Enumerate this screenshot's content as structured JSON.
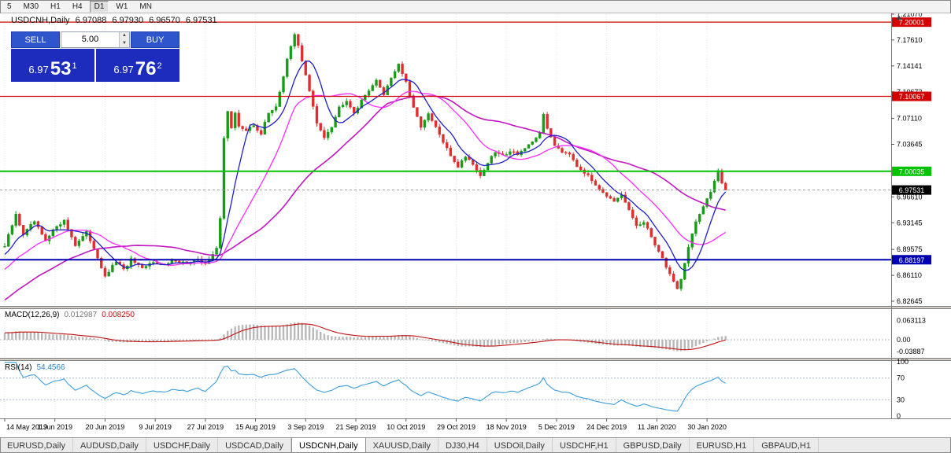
{
  "toolbar": {
    "timeframes": [
      "5",
      "M30",
      "H1",
      "H4",
      "D1",
      "W1",
      "MN"
    ],
    "active": "D1"
  },
  "chart_header": {
    "symbol_period": "USDCNH,Daily",
    "open": "6.97088",
    "high": "6.97930",
    "low": "6.96570",
    "close": "6.97531"
  },
  "one_click": {
    "sell_label": "SELL",
    "buy_label": "BUY",
    "volume": "5.00",
    "spin_up": "▲",
    "spin_down": "▼",
    "sell_small": "6.97",
    "sell_big": "53",
    "sell_sup": "1",
    "buy_small": "6.97",
    "buy_big": "76",
    "buy_sup": "2"
  },
  "colors": {
    "bull": "#189c18",
    "bear": "#dd2f2f",
    "ma_fast": "#1f1fc8",
    "ma_mid": "#ff2bff",
    "ma_slow": "#c316c3",
    "grid": "#e3e3e3",
    "axis_line": "#808080",
    "separator": "#d4d0c8",
    "macd_hist": "#b8b8b8",
    "macd_signal": "#c11111",
    "rsi_line": "#3a9fdc",
    "rsi_levels": "#a9b4c6",
    "bid_line": "#9a9a9a",
    "current_tag_bg": "#000000"
  },
  "chart_data": {
    "type": "candlestick",
    "symbol": "USDCNH",
    "period": "Daily",
    "visible_bars": 195,
    "current_price": 6.97531,
    "price_axis": {
      "min": 6.82645,
      "max": 7.2107,
      "ticks": [
        "7.21070",
        "7.17610",
        "7.14141",
        "7.10672",
        "7.07110",
        "7.03645",
        "6.96610",
        "6.93145",
        "6.89575",
        "6.86110",
        "6.82645"
      ]
    },
    "time_axis": {
      "labels": [
        "14 May 2019",
        "1 Jun 2019",
        "20 Jun 2019",
        "9 Jul 2019",
        "27 Jul 2019",
        "15 Aug 2019",
        "3 Sep 2019",
        "21 Sep 2019",
        "10 Oct 2019",
        "29 Oct 2019",
        "18 Nov 2019",
        "5 Dec 2019",
        "24 Dec 2019",
        "11 Jan 2020",
        "30 Jan 2020"
      ],
      "bars_per_label": 13.5
    },
    "levels": [
      {
        "value": 7.20001,
        "label": "7.20001",
        "color": "#d40000",
        "width": 1.2
      },
      {
        "value": 7.10067,
        "label": "7.10067",
        "color": "#d40000",
        "width": 1.2
      },
      {
        "value": 7.00035,
        "label": "7.00035",
        "color": "#00c300",
        "width": 2
      },
      {
        "value": 6.88197,
        "label": "6.88197",
        "color": "#0000b0",
        "width": 2
      }
    ],
    "current_tag": {
      "label": "6.97531"
    },
    "close_anchors": [
      [
        0,
        6.9
      ],
      [
        2,
        6.928
      ],
      [
        3,
        6.942
      ],
      [
        5,
        6.916
      ],
      [
        8,
        6.933
      ],
      [
        11,
        6.906
      ],
      [
        14,
        6.928
      ],
      [
        16,
        6.934
      ],
      [
        19,
        6.902
      ],
      [
        22,
        6.918
      ],
      [
        24,
        6.898
      ],
      [
        26,
        6.872
      ],
      [
        27,
        6.858
      ],
      [
        28,
        6.866
      ],
      [
        30,
        6.88
      ],
      [
        32,
        6.868
      ],
      [
        34,
        6.882
      ],
      [
        37,
        6.869
      ],
      [
        40,
        6.88
      ],
      [
        43,
        6.874
      ],
      [
        46,
        6.882
      ],
      [
        49,
        6.877
      ],
      [
        52,
        6.881
      ],
      [
        54,
        6.878
      ],
      [
        56,
        6.888
      ],
      [
        57,
        6.897
      ],
      [
        58,
        6.937
      ],
      [
        59,
        7.046
      ],
      [
        60,
        7.082
      ],
      [
        61,
        7.058
      ],
      [
        62,
        7.077
      ],
      [
        63,
        7.061
      ],
      [
        65,
        7.055
      ],
      [
        67,
        7.062
      ],
      [
        69,
        7.051
      ],
      [
        71,
        7.078
      ],
      [
        73,
        7.088
      ],
      [
        75,
        7.126
      ],
      [
        76,
        7.15
      ],
      [
        78,
        7.183
      ],
      [
        79,
        7.169
      ],
      [
        80,
        7.149
      ],
      [
        82,
        7.108
      ],
      [
        84,
        7.064
      ],
      [
        86,
        7.047
      ],
      [
        88,
        7.061
      ],
      [
        90,
        7.086
      ],
      [
        92,
        7.096
      ],
      [
        94,
        7.079
      ],
      [
        96,
        7.094
      ],
      [
        98,
        7.11
      ],
      [
        100,
        7.121
      ],
      [
        102,
        7.104
      ],
      [
        104,
        7.126
      ],
      [
        106,
        7.144
      ],
      [
        108,
        7.119
      ],
      [
        110,
        7.084
      ],
      [
        112,
        7.061
      ],
      [
        114,
        7.076
      ],
      [
        116,
        7.059
      ],
      [
        118,
        7.039
      ],
      [
        120,
        7.021
      ],
      [
        122,
        7.007
      ],
      [
        124,
        7.021
      ],
      [
        126,
        7.011
      ],
      [
        128,
        6.994
      ],
      [
        130,
        7.012
      ],
      [
        132,
        7.026
      ],
      [
        134,
        7.021
      ],
      [
        136,
        7.028
      ],
      [
        138,
        7.024
      ],
      [
        140,
        7.031
      ],
      [
        142,
        7.038
      ],
      [
        144,
        7.052
      ],
      [
        145,
        7.078
      ],
      [
        146,
        7.056
      ],
      [
        148,
        7.036
      ],
      [
        150,
        7.027
      ],
      [
        152,
        7.025
      ],
      [
        154,
        7.008
      ],
      [
        156,
        6.999
      ],
      [
        158,
        6.988
      ],
      [
        160,
        6.978
      ],
      [
        162,
        6.968
      ],
      [
        164,
        6.958
      ],
      [
        166,
        6.968
      ],
      [
        168,
        6.948
      ],
      [
        170,
        6.928
      ],
      [
        172,
        6.931
      ],
      [
        174,
        6.913
      ],
      [
        176,
        6.893
      ],
      [
        178,
        6.873
      ],
      [
        180,
        6.853
      ],
      [
        181,
        6.843
      ],
      [
        182,
        6.857
      ],
      [
        183,
        6.878
      ],
      [
        184,
        6.898
      ],
      [
        185,
        6.918
      ],
      [
        186,
        6.933
      ],
      [
        188,
        6.952
      ],
      [
        190,
        6.972
      ],
      [
        191,
        6.988
      ],
      [
        192,
        7.003
      ],
      [
        193,
        6.985
      ],
      [
        194,
        6.97531
      ]
    ],
    "indicators": {
      "moving_averages": [
        {
          "name": "ma-fast",
          "period": 8
        },
        {
          "name": "ma-mid",
          "period": 20
        },
        {
          "name": "ma-slow",
          "period": 45
        }
      ],
      "macd": {
        "label": "MACD(12,26,9)",
        "value_main": "0.012987",
        "value_signal": "0.008250",
        "axis_labels": [
          "0.063113",
          "0.00",
          "-0.03887"
        ]
      },
      "rsi": {
        "label": "RSI(14)",
        "value": "54.4566",
        "axis_labels": [
          "100",
          "70",
          "30",
          "0"
        ],
        "levels": [
          70,
          30
        ]
      }
    }
  },
  "tabbar": {
    "tabs": [
      "EURUSD,Daily",
      "AUDUSD,Daily",
      "USDCHF,Daily",
      "USDCAD,Daily",
      "USDCNH,Daily",
      "XAUUSD,Daily",
      "DJ30,H4",
      "USDOil,Daily",
      "USDCHF,H1",
      "GBPUSD,Daily",
      "EURUSD,H1",
      "GBPAUD,H1"
    ],
    "active": "USDCNH,Daily"
  }
}
